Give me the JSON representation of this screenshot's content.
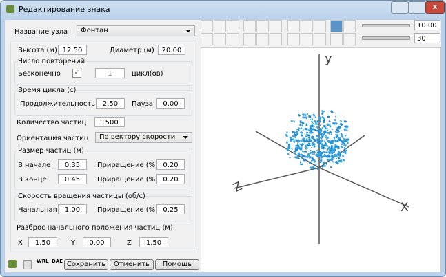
{
  "window": {
    "title": "Редактирование знака"
  },
  "form": {
    "node_label": "Название узла",
    "node_value": "Фонтан",
    "height_label": "Высота (м)",
    "height_value": "12.50",
    "diameter_label": "Диаметр (м)",
    "diameter_value": "20.00",
    "repeats": {
      "title": "Число повторений",
      "infinite_label": "Бесконечно",
      "count_value": "1",
      "count_unit": "цикл(ов)"
    },
    "cycle": {
      "title": "Время цикла (с)",
      "duration_label": "Продолжительность",
      "duration_value": "2.50",
      "pause_label": "Пауза",
      "pause_value": "0.00"
    },
    "particles_label": "Количество частиц",
    "particles_value": "1500",
    "orientation_label": "Ориентация частиц",
    "orientation_value": "По вектору скорости",
    "size": {
      "title": "Размер частиц (м)",
      "start_label": "В начале",
      "start_value": "0.35",
      "start_inc_label": "Приращение (%)",
      "start_inc_value": "0.20",
      "end_label": "В конце",
      "end_value": "0.45",
      "end_inc_label": "Приращение (%)",
      "end_inc_value": "0.20"
    },
    "rotation": {
      "title": "Скорость вращения частицы (об/с)",
      "initial_label": "Начальная",
      "initial_value": "1.00",
      "inc_label": "Приращение (%)",
      "inc_value": "0.25"
    },
    "spread": {
      "title": "Разброс начального положения частиц (м):",
      "x_label": "X",
      "x_value": "1.50",
      "y_label": "Y",
      "y_value": "0.00",
      "z_label": "Z",
      "z_value": "1.50"
    }
  },
  "footer": {
    "wrl": "WRL",
    "dae": "DAE",
    "save": "Сохранить",
    "cancel": "Отменить",
    "help": "Помощь"
  },
  "view": {
    "zoom_value": "10.00",
    "count_value": "30",
    "axis_y": "y",
    "axis_x": "X",
    "axis_z": "Z"
  }
}
